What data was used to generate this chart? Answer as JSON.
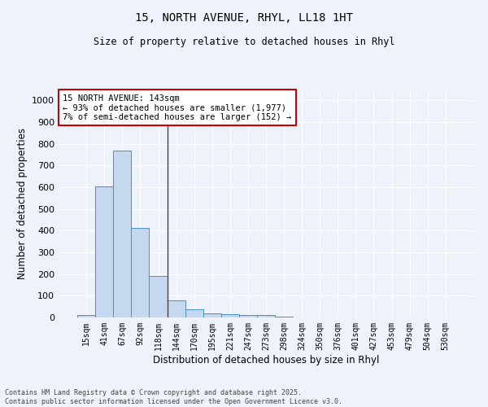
{
  "title_line1": "15, NORTH AVENUE, RHYL, LL18 1HT",
  "title_line2": "Size of property relative to detached houses in Rhyl",
  "xlabel": "Distribution of detached houses by size in Rhyl",
  "ylabel": "Number of detached properties",
  "bar_labels": [
    "15sqm",
    "41sqm",
    "67sqm",
    "92sqm",
    "118sqm",
    "144sqm",
    "170sqm",
    "195sqm",
    "221sqm",
    "247sqm",
    "273sqm",
    "298sqm",
    "324sqm",
    "350sqm",
    "376sqm",
    "401sqm",
    "427sqm",
    "453sqm",
    "479sqm",
    "504sqm",
    "530sqm"
  ],
  "bar_values": [
    12,
    605,
    770,
    412,
    192,
    78,
    37,
    17,
    15,
    13,
    11,
    5,
    0,
    0,
    0,
    0,
    0,
    0,
    0,
    0,
    0
  ],
  "bar_color": "#c5d8f0",
  "bar_edge_color": "#4a90c4",
  "highlight_index": 4,
  "highlight_line_color": "#444444",
  "ylim": [
    0,
    1050
  ],
  "yticks": [
    0,
    100,
    200,
    300,
    400,
    500,
    600,
    700,
    800,
    900,
    1000
  ],
  "annotation_title": "15 NORTH AVENUE: 143sqm",
  "annotation_line1": "← 93% of detached houses are smaller (1,977)",
  "annotation_line2": "7% of semi-detached houses are larger (152) →",
  "annotation_box_color": "#ffffff",
  "annotation_box_edge": "#cc0000",
  "background_color": "#eef2fb",
  "grid_color": "#ffffff",
  "footer_line1": "Contains HM Land Registry data © Crown copyright and database right 2025.",
  "footer_line2": "Contains public sector information licensed under the Open Government Licence v3.0."
}
